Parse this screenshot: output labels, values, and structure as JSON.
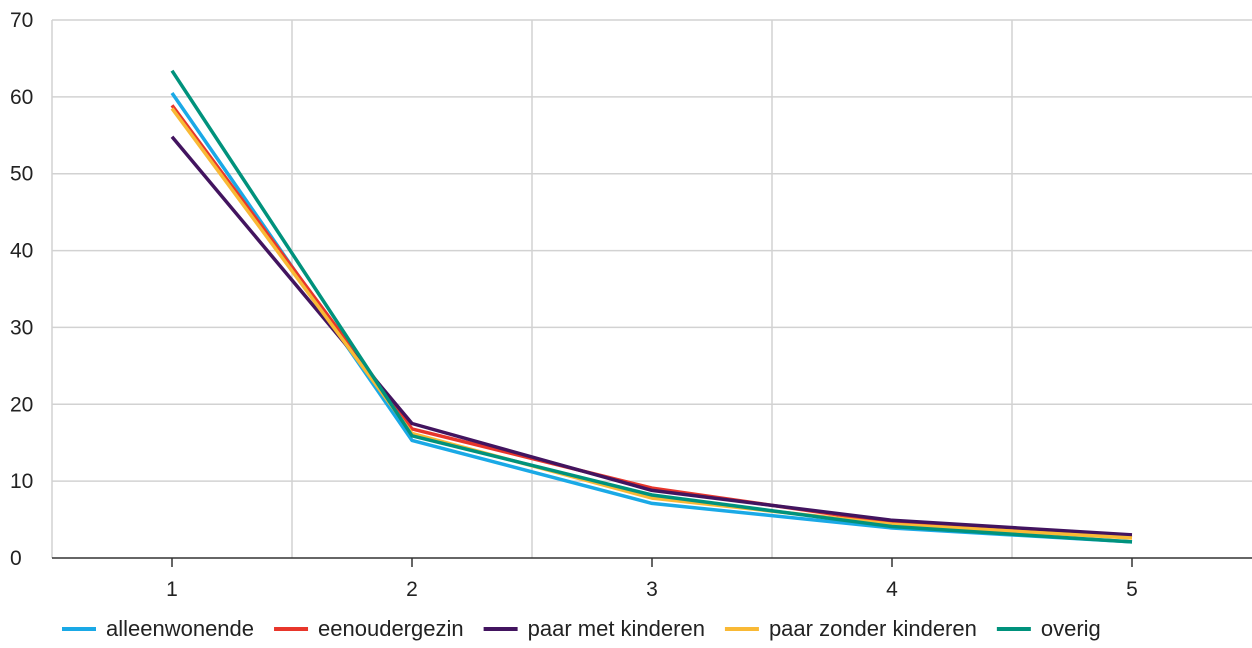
{
  "chart_data": {
    "type": "line",
    "x": [
      1,
      2,
      3,
      4,
      5
    ],
    "xlim": [
      0.5,
      5.5
    ],
    "ylim": [
      0,
      70
    ],
    "x_ticks": [
      1,
      2,
      3,
      4,
      5
    ],
    "y_ticks": [
      0,
      10,
      20,
      30,
      40,
      50,
      60,
      70
    ],
    "grid": true,
    "legend_position": "bottom",
    "series": [
      {
        "name": "alleenwonende",
        "color": "#1aa9e6",
        "values": [
          60.5,
          15.3,
          7.1,
          3.9,
          2.1
        ]
      },
      {
        "name": "eenoudergezin",
        "color": "#e8362b",
        "values": [
          58.9,
          16.8,
          9.1,
          4.6,
          2.7
        ]
      },
      {
        "name": "paar met kinderen",
        "color": "#42145f",
        "values": [
          54.8,
          17.5,
          8.8,
          4.9,
          3.0
        ]
      },
      {
        "name": "paar zonder kinderen",
        "color": "#f9b935",
        "values": [
          58.5,
          16.2,
          7.8,
          4.4,
          2.6
        ]
      },
      {
        "name": "overig",
        "color": "#00927c",
        "values": [
          63.4,
          15.9,
          8.2,
          4.1,
          2.1
        ]
      }
    ]
  }
}
